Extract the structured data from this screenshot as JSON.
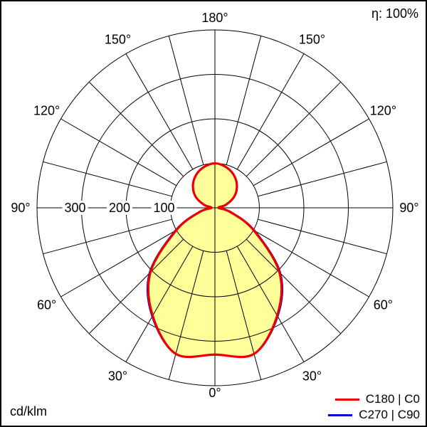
{
  "page": {
    "efficiency_label": "η: 100%",
    "unit_label": "cd/klm"
  },
  "legend": {
    "items": [
      {
        "label": "C180 | C0",
        "color": "#ee0000"
      },
      {
        "label": "C270 | C90",
        "color": "#0000cc"
      }
    ]
  },
  "chart_data": {
    "type": "polar",
    "subtype": "luminous-intensity-distribution",
    "unit": "cd/klm",
    "efficiency_percent": 100,
    "orientation": "0 deg at bottom (nadir), 180 deg at top, symmetric left/right",
    "grid_step_deg": 15,
    "ring_values": [
      100,
      200,
      300,
      400
    ],
    "ring_tick_labels": [
      "100",
      "200",
      "300"
    ],
    "max_ring_value": 400,
    "angle_labels": [
      "0°",
      "30°",
      "60°",
      "90°",
      "120°",
      "150°",
      "180°"
    ],
    "gamma_deg": [
      0,
      15,
      30,
      45,
      60,
      75,
      90,
      105,
      120,
      135,
      150,
      165,
      180
    ],
    "series": [
      {
        "name": "C180 | C0",
        "color": "#ee0000",
        "stroke_width": 3.2,
        "values": [
          330,
          340,
          280,
          205,
          100,
          35,
          8,
          25,
          50,
          70,
          85,
          95,
          100
        ]
      },
      {
        "name": "C270 | C90",
        "color": "#0000cc",
        "stroke_width": 2.6,
        "values": [
          330,
          340,
          282,
          208,
          103,
          37,
          8,
          25,
          50,
          70,
          85,
          95,
          100
        ]
      }
    ],
    "fill_color": "#ffff99",
    "grid_color": "#000000",
    "text_color": "#000000"
  }
}
